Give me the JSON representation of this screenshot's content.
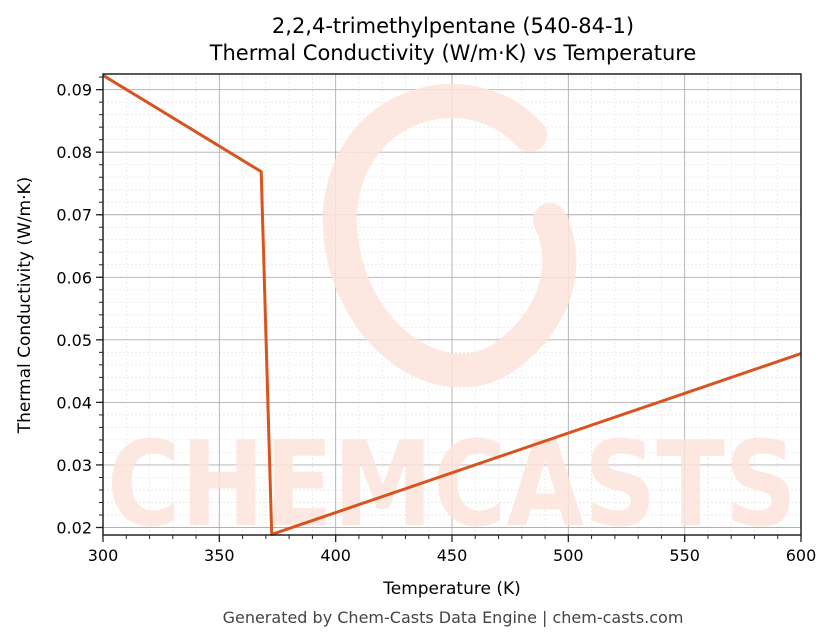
{
  "title_line1": "2,2,4-trimethylpentane (540-84-1)",
  "title_line2": "Thermal Conductivity (W/m·K) vs Temperature",
  "footer": "Generated by Chem-Casts Data Engine | chem-casts.com",
  "watermark": "CHEMCASTS",
  "colors": {
    "line": "#d9531e",
    "watermark": "#fde3dc",
    "grid_major": "#b0b0b0",
    "grid_minor": "#e3e3e3"
  },
  "chart_data": {
    "type": "line",
    "title": "2,2,4-trimethylpentane (540-84-1) Thermal Conductivity (W/m·K) vs Temperature",
    "xlabel": "Temperature (K)",
    "ylabel": "Thermal Conductivity (W/m·K)",
    "xlim": [
      300,
      600
    ],
    "ylim": [
      0.0188,
      0.0925
    ],
    "xticks": [
      "300",
      "350",
      "400",
      "450",
      "500",
      "550",
      "600"
    ],
    "yticks": [
      "0.02",
      "0.03",
      "0.04",
      "0.05",
      "0.06",
      "0.07",
      "0.08",
      "0.09"
    ],
    "grid": true,
    "legend": null,
    "series": [
      {
        "name": "Thermal Conductivity",
        "x": [
          300,
          368,
          372.5,
          600
        ],
        "y": [
          0.0923,
          0.0769,
          0.0189,
          0.0478
        ]
      }
    ]
  }
}
